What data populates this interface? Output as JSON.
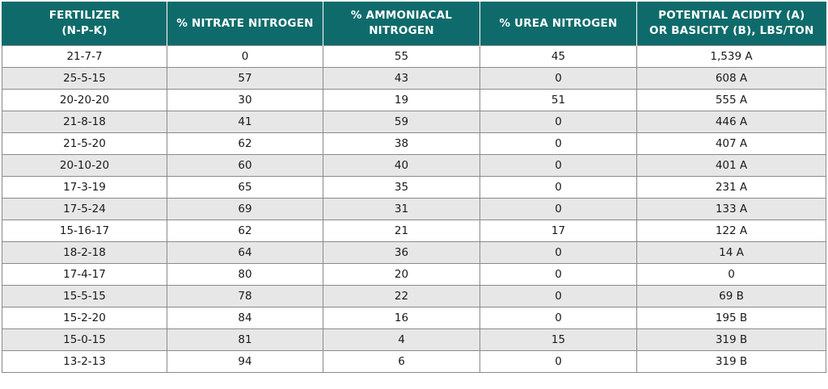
{
  "table": {
    "headers": [
      {
        "line1": "FERTILIZER",
        "line2": "(N-P-K)"
      },
      {
        "line1": "% NITRATE NITROGEN",
        "line2": ""
      },
      {
        "line1": "% AMMONIACAL",
        "line2": "NITROGEN"
      },
      {
        "line1": "% UREA NITROGEN",
        "line2": ""
      },
      {
        "line1": "POTENTIAL ACIDITY (A)",
        "line2": "OR BASICITY (B), LBS/TON"
      }
    ],
    "rows": [
      [
        "21-7-7",
        "0",
        "55",
        "45",
        "1,539 A"
      ],
      [
        "25-5-15",
        "57",
        "43",
        "0",
        "608 A"
      ],
      [
        "20-20-20",
        "30",
        "19",
        "51",
        "555 A"
      ],
      [
        "21-8-18",
        "41",
        "59",
        "0",
        "446 A"
      ],
      [
        "21-5-20",
        "62",
        "38",
        "0",
        "407 A"
      ],
      [
        "20-10-20",
        "60",
        "40",
        "0",
        "401 A"
      ],
      [
        "17-3-19",
        "65",
        "35",
        "0",
        "231 A"
      ],
      [
        "17-5-24",
        "69",
        "31",
        "0",
        "133 A"
      ],
      [
        "15-16-17",
        "62",
        "21",
        "17",
        "122 A"
      ],
      [
        "18-2-18",
        "64",
        "36",
        "0",
        "14 A"
      ],
      [
        "17-4-17",
        "80",
        "20",
        "0",
        "0"
      ],
      [
        "15-5-15",
        "78",
        "22",
        "0",
        "69 B"
      ],
      [
        "15-2-20",
        "84",
        "16",
        "0",
        "195 B"
      ],
      [
        "15-0-15",
        "81",
        "4",
        "15",
        "319 B"
      ],
      [
        "13-2-13",
        "94",
        "6",
        "0",
        "319 B"
      ]
    ],
    "colors": {
      "header_bg": "#0f6b6b",
      "header_text": "#ffffff",
      "alt_row": "#e7e7e7",
      "border": "#8a8a8a"
    }
  }
}
